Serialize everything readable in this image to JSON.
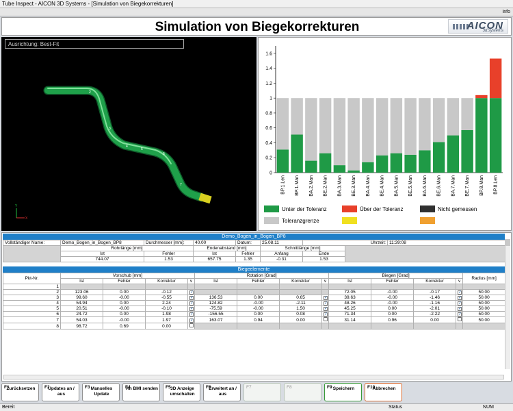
{
  "window": {
    "title": "Tube Inspect - AICON 3D Systems - [Simulation von Biegekorrekturen]",
    "info": "Info"
  },
  "header": {
    "title": "Simulation von Biegekorrekturen",
    "logo_big": "AICON",
    "logo_small": "3d.systems"
  },
  "viewport": {
    "alignment": "Ausrichtung: Best-Fit",
    "points": [
      "2",
      "3",
      "4",
      "5",
      "6",
      "7"
    ],
    "axis_x": "X",
    "axis_y": "Y"
  },
  "chart_data": {
    "type": "bar",
    "categories": [
      "BP.1.Len",
      "BP.1.Man",
      "BA.2.Man",
      "BE.2.Man",
      "BA.3.Man",
      "BE.3.Man",
      "BA.4.Man",
      "BE.4.Man",
      "BA.5.Man",
      "BE.5.Man",
      "BA.6.Man",
      "BE.6.Man",
      "BA.7.Man",
      "BE.7.Man",
      "BP.8.Man",
      "BP.8.Len"
    ],
    "yticks": [
      "0",
      "0.2",
      "0.4",
      "0.6",
      "0.8",
      "1",
      "1.2",
      "1.4",
      "1.6"
    ],
    "ylim": [
      0,
      1.7
    ],
    "series": [
      {
        "name": "Unter der Toleranz",
        "color": "#1f9a46",
        "values": [
          0.31,
          0.51,
          0.16,
          0.26,
          0.1,
          0.03,
          0.14,
          0.23,
          0.26,
          0.24,
          0.3,
          0.41,
          0.5,
          0.57,
          1.0,
          1.0
        ]
      },
      {
        "name": "Toleranzgrenze",
        "color": "#c8c8c8",
        "values": [
          0.69,
          0.49,
          0.84,
          0.74,
          0.9,
          0.97,
          0.86,
          0.77,
          0.74,
          0.76,
          0.7,
          0.59,
          0.5,
          0.43,
          0,
          0
        ]
      },
      {
        "name": "Über der Toleranz",
        "color": "#e8402a",
        "values": [
          0,
          0,
          0,
          0,
          0,
          0,
          0,
          0,
          0,
          0,
          0,
          0,
          0,
          0,
          0.04,
          0.53
        ]
      }
    ],
    "legend": [
      {
        "label": "Unter der Toleranz",
        "color": "#1f9a46"
      },
      {
        "label": "Über der Toleranz",
        "color": "#e8402a"
      },
      {
        "label": "Nicht gemessen",
        "color": "#303030"
      },
      {
        "label": "Toleranzgrenze",
        "color": "#c8c8c8"
      },
      {
        "label": "",
        "color": "#f0e020"
      },
      {
        "label": "",
        "color": "#f0a030"
      }
    ]
  },
  "info": {
    "project": "Demo_Bogen_in_Bogen_BP8",
    "labels": {
      "full_name": "Vollständiger Name:",
      "diameter": "Durchmesser [mm]:",
      "date": "Datum:",
      "time": "Uhrzeit:",
      "tube_length": "Rohrlänge [mm]",
      "end_distance": "Endenabstand [mm]",
      "cut_length": "Schnittlänge [mm]",
      "ist": "Ist",
      "fehler": "Fehler",
      "anfang": "Anfang",
      "ende": "Ende"
    },
    "name": "Demo_Bogen_in_Bogen_BP8",
    "diameter": "40.00",
    "date": "25.08.11",
    "time": "11:39:08",
    "tube_length_ist": "744.07",
    "tube_length_fehler": "1.53",
    "end_distance_ist": "657.75",
    "end_distance_fehler": "1.35",
    "cut_anfang": "-0.31",
    "cut_ende": "1.53"
  },
  "bends": {
    "title": "Biegeelemente",
    "headers": {
      "pnt": "Pkt-Nr.",
      "push": "Vorschub [mm]",
      "rot": "Rotation [Grad]",
      "bend": "Biegen [Grad]",
      "radius": "Radius [mm]",
      "ist": "Ist",
      "fehler": "Fehler",
      "korr": "Korrektur",
      "v": "v"
    },
    "rows": [
      {
        "n": "1",
        "p": [
          "",
          "",
          ""
        ],
        "pc": false,
        "r": [
          "",
          "",
          ""
        ],
        "rc": false,
        "b": [
          "",
          "",
          ""
        ],
        "bc": false,
        "rad": ""
      },
      {
        "n": "2",
        "p": [
          "123.06",
          "0.00",
          "-0.12"
        ],
        "pc": true,
        "r": [
          "",
          "",
          ""
        ],
        "rc": false,
        "b": [
          "72.05",
          "-0.00",
          "-0.17"
        ],
        "bc": true,
        "rad": "50.00"
      },
      {
        "n": "3",
        "p": [
          "99.60",
          "-0.00",
          "-0.55"
        ],
        "pc": true,
        "r": [
          "136.53",
          "0.00",
          "0.65"
        ],
        "rc": true,
        "b": [
          "39.63",
          "-0.00",
          "-1.46"
        ],
        "bc": true,
        "rad": "50.00"
      },
      {
        "n": "4",
        "p": [
          "54.94",
          "0.00",
          "2.24"
        ],
        "pc": true,
        "r": [
          "124.82",
          "-0.00",
          "-2.11"
        ],
        "rc": true,
        "b": [
          "48.26",
          "-0.00",
          "-1.16"
        ],
        "bc": true,
        "rad": "50.00"
      },
      {
        "n": "5",
        "p": [
          "20.51",
          "-0.00",
          "-0.10"
        ],
        "pc": true,
        "r": [
          "-75.59",
          "-0.00",
          "1.50"
        ],
        "rc": true,
        "b": [
          "45.25",
          "0.00",
          "-2.01"
        ],
        "bc": true,
        "rad": "50.00"
      },
      {
        "n": "6",
        "p": [
          "24.72",
          "0.00",
          "1.98"
        ],
        "pc": true,
        "r": [
          "-156.55",
          "0.00",
          "0.08"
        ],
        "rc": true,
        "b": [
          "71.34",
          "0.00",
          "-2.22"
        ],
        "bc": true,
        "rad": "50.00"
      },
      {
        "n": "7",
        "p": [
          "54.03",
          "-0.00",
          "1.97"
        ],
        "pc": true,
        "r": [
          "163.07",
          "0.94",
          "0.00"
        ],
        "rc": false,
        "b": [
          "31.14",
          "0.96",
          "0.00"
        ],
        "bc": false,
        "rad": "50.00"
      },
      {
        "n": "8",
        "p": [
          "98.72",
          "0.69",
          "0.00"
        ],
        "pc": false,
        "r": [
          "",
          "",
          ""
        ],
        "rc": false,
        "b": [
          "",
          "",
          ""
        ],
        "bc": false,
        "rad": ""
      }
    ]
  },
  "fkeys": [
    {
      "n": "F1",
      "l": "Zurücksetzen",
      "s": "normal"
    },
    {
      "n": "F2",
      "l": "Updates an / aus",
      "s": "normal"
    },
    {
      "n": "F3",
      "l": "Manuelles Update",
      "s": "normal"
    },
    {
      "n": "F4",
      "l": "An BMI senden",
      "s": "normal"
    },
    {
      "n": "F5",
      "l": "3D Anzeige umschalten",
      "s": "normal"
    },
    {
      "n": "F6",
      "l": "Erweitert an / aus",
      "s": "normal"
    },
    {
      "n": "F7",
      "l": "",
      "s": "dis"
    },
    {
      "n": "F8",
      "l": "",
      "s": "dis"
    },
    {
      "n": "F9",
      "l": "Speichern",
      "s": "green"
    },
    {
      "n": "F10",
      "l": "Abbrechen",
      "s": "orange"
    }
  ],
  "status": {
    "left": "Bereit",
    "mid": "Status",
    "right": "NUM"
  }
}
